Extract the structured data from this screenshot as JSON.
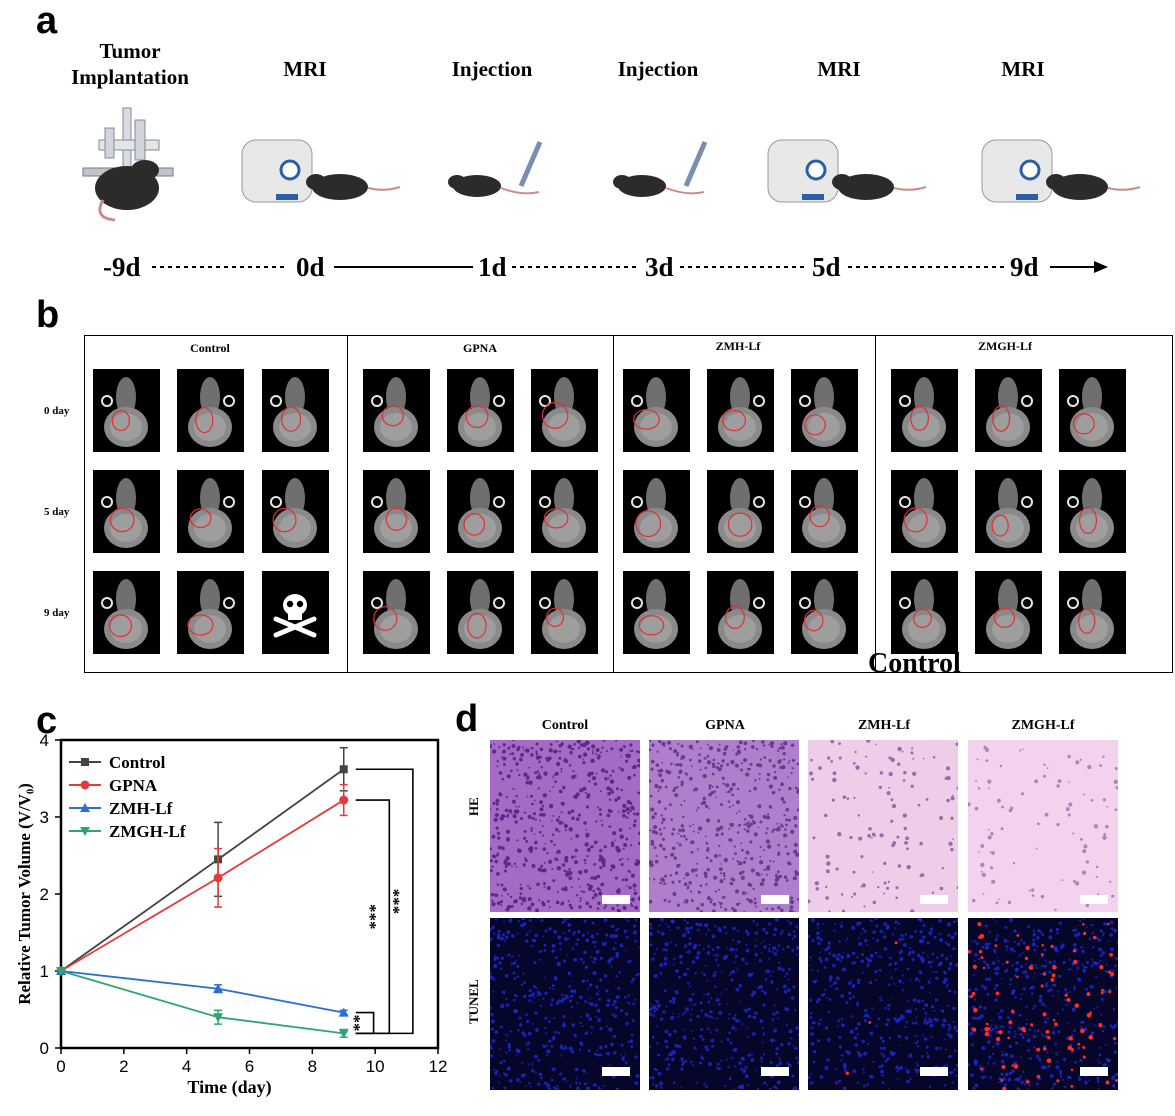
{
  "panel_a": {
    "letter": "a",
    "steps": [
      {
        "label": "Tumor\nImplantation",
        "day": "-9d",
        "icon": "tumor-implantation-icon"
      },
      {
        "label": "MRI",
        "day": "0d",
        "icon": "mri-scanner-icon"
      },
      {
        "label": "Injection",
        "day": "1d",
        "icon": "injection-mouse-icon"
      },
      {
        "label": "Injection",
        "day": "3d",
        "icon": "injection-mouse-icon"
      },
      {
        "label": "MRI",
        "day": "5d",
        "icon": "mri-scanner-icon"
      },
      {
        "label": "MRI",
        "day": "9d",
        "icon": "mri-scanner-icon"
      }
    ]
  },
  "panel_b": {
    "letter": "b",
    "groups": [
      "Control",
      "GPNA",
      "ZMH-Lf",
      "ZMGH-Lf"
    ],
    "rows": [
      "0 day",
      "5 day",
      "9 day"
    ],
    "stray_label": "Control"
  },
  "panel_c": {
    "letter": "c",
    "significance": [
      "***",
      "***",
      "**"
    ]
  },
  "panel_d": {
    "letter": "d",
    "groups": [
      "Control",
      "GPNA",
      "ZMH-Lf",
      "ZMGH-Lf"
    ],
    "rows": [
      "HE",
      "TUNEL"
    ]
  },
  "chart_data": {
    "type": "line",
    "title": "",
    "xlabel": "Time (day)",
    "ylabel": "Relative Tumor Volume (V/V₀)",
    "xlim": [
      0,
      12
    ],
    "ylim": [
      0,
      4
    ],
    "xticks": [
      "0",
      "2",
      "4",
      "6",
      "8",
      "10",
      "12"
    ],
    "yticks": [
      "0",
      "1",
      "2",
      "3",
      "4"
    ],
    "legend_position": "top-left",
    "series": [
      {
        "name": "Control",
        "color": "#444444",
        "marker": "square",
        "x": [
          0,
          5,
          9
        ],
        "y": [
          1.0,
          2.45,
          3.62
        ],
        "err": [
          0,
          0.48,
          0.28
        ]
      },
      {
        "name": "GPNA",
        "color": "#e03c3c",
        "marker": "circle",
        "x": [
          0,
          5,
          9
        ],
        "y": [
          1.0,
          2.21,
          3.22
        ],
        "err": [
          0,
          0.38,
          0.2
        ]
      },
      {
        "name": "ZMH-Lf",
        "color": "#2a6fd1",
        "marker": "triangle-up",
        "x": [
          0,
          5,
          9
        ],
        "y": [
          1.0,
          0.77,
          0.46
        ],
        "err": [
          0,
          0.05,
          0.03
        ]
      },
      {
        "name": "ZMGH-Lf",
        "color": "#2fa66e",
        "marker": "triangle-down",
        "x": [
          0,
          5,
          9
        ],
        "y": [
          1.0,
          0.4,
          0.19
        ],
        "err": [
          0,
          0.09,
          0.05
        ]
      }
    ]
  }
}
